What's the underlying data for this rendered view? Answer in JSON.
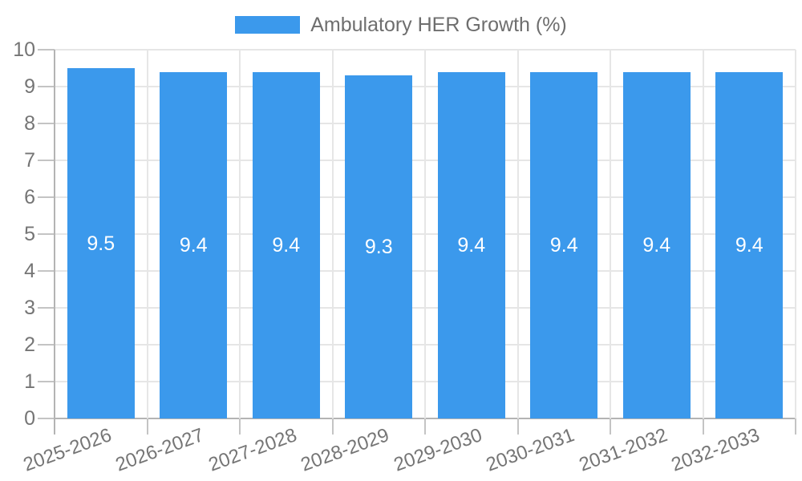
{
  "chart_data": {
    "type": "bar",
    "title": "",
    "legend": {
      "label": "Ambulatory HER Growth (%)",
      "position": "top"
    },
    "categories": [
      "2025-2026",
      "2026-2027",
      "2027-2028",
      "2028-2029",
      "2029-2030",
      "2030-2031",
      "2031-2032",
      "2032-2033"
    ],
    "values": [
      9.5,
      9.4,
      9.4,
      9.3,
      9.4,
      9.4,
      9.4,
      9.4
    ],
    "bar_labels": [
      "9.5",
      "9.4",
      "9.4",
      "9.3",
      "9.4",
      "9.4",
      "9.4",
      "9.4"
    ],
    "xlabel": "",
    "ylabel": "",
    "ylim": [
      0,
      10
    ],
    "yticks": [
      0,
      1,
      2,
      3,
      4,
      5,
      6,
      7,
      8,
      9,
      10
    ],
    "x_label_rotation_deg": -20,
    "grid": true,
    "colors": {
      "bar": "#3B99EC",
      "bar_label": "#FFFFFF",
      "axis_text": "#757575",
      "legend_text": "#6E6E6E",
      "gridline": "#E6E6E6",
      "axis_line": "#B4B4B4",
      "tick": "#C4C4C4",
      "background": "#FFFFFF"
    }
  }
}
